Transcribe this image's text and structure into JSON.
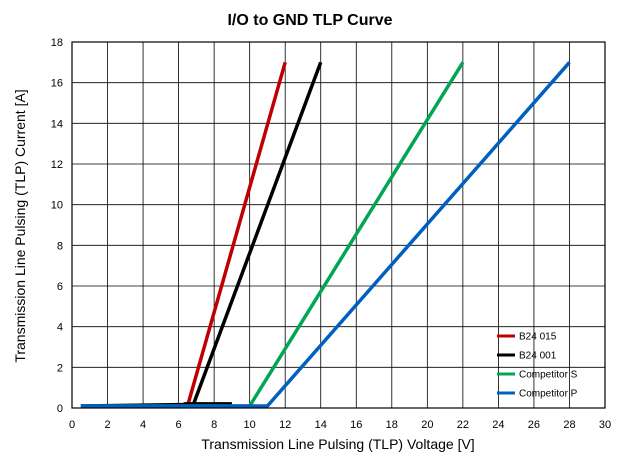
{
  "chart_data": {
    "type": "line",
    "title": "I/O to GND TLP Curve",
    "xlabel": "Transmission Line Pulsing (TLP) Voltage [V]",
    "ylabel": "Transmission Line Pulsing (TLP) Current [A]",
    "xlim": [
      0,
      30
    ],
    "ylim": [
      0,
      18
    ],
    "xticks": [
      0,
      2,
      4,
      6,
      8,
      10,
      12,
      14,
      16,
      18,
      20,
      22,
      24,
      26,
      28,
      30
    ],
    "yticks": [
      0,
      2,
      4,
      6,
      8,
      10,
      12,
      14,
      16,
      18
    ],
    "grid": true,
    "legend_position": "bottom-right",
    "series": [
      {
        "name": "B24 015",
        "color": "#c00000",
        "points": [
          [
            0.5,
            0.1
          ],
          [
            6.5,
            0.1
          ],
          [
            12,
            17
          ]
        ]
      },
      {
        "name": "B24 001",
        "color": "#000000",
        "points": [
          [
            0.5,
            0.1
          ],
          [
            9,
            0.2
          ],
          [
            6.6,
            0.2
          ],
          [
            6.8,
            0.1
          ],
          [
            14,
            17
          ]
        ]
      },
      {
        "name": "Competitor S",
        "color": "#00a651",
        "points": [
          [
            0.5,
            0.1
          ],
          [
            10,
            0.1
          ],
          [
            22,
            17
          ]
        ]
      },
      {
        "name": "Competitor P",
        "color": "#0060c0",
        "points": [
          [
            0.5,
            0.1
          ],
          [
            11,
            0.1
          ],
          [
            28,
            17
          ]
        ]
      }
    ]
  }
}
